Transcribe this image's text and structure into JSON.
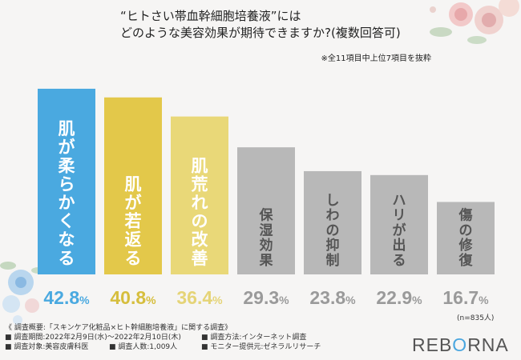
{
  "title": {
    "line1": "“ヒトさい帯血幹細胞培養液”には",
    "line2": "どのような美容効果が期待できますか?(複数回答可)"
  },
  "note": "※全11項目中上位7項目を抜粋",
  "sample_size": "(n=835人)",
  "colors": {
    "bar1": "#4aa9e0",
    "bar2": "#e3c84a",
    "bar3": "#e9d878",
    "gray": "#b8b8b8",
    "text_blue": "#4aa9e0",
    "text_yellow": "#d6be3d",
    "text_yellow_light": "#e5d477",
    "text_gray": "#9a9a9a"
  },
  "chart_data": {
    "type": "bar",
    "title": "“ヒトさい帯血幹細胞培養液”にはどのような美容効果が期待できますか?(複数回答可)",
    "categories": [
      "肌が柔らかくなる",
      "肌が若返る",
      "肌荒れの改善",
      "保湿効果",
      "しわの抑制",
      "ハリが出る",
      "傷の修復"
    ],
    "values": [
      42.8,
      40.8,
      36.4,
      29.3,
      23.8,
      22.9,
      16.7
    ],
    "value_labels": [
      "42.8%",
      "40.8%",
      "36.4%",
      "29.3%",
      "23.8%",
      "22.9%",
      "16.7%"
    ],
    "unit": "%",
    "xlabel": "",
    "ylabel": "",
    "ylim": [
      0,
      45
    ]
  },
  "survey": {
    "header": "《 調査概要:「スキンケア化粧品×ヒト幹細胞培養液」に関する調査》",
    "period": "■ 調査期間:2022年2月9日(水)〜2022年2月10日(木)",
    "method": "■ 調査方法:インターネット調査",
    "target": "■ 調査対象:美容皮膚科医",
    "count": "■ 調査人数:1,009人",
    "monitor": "■ モニター提供元:ゼネラルリサーチ"
  },
  "logo": {
    "part1": "REB",
    "part2": "O",
    "part3": "RNA"
  }
}
